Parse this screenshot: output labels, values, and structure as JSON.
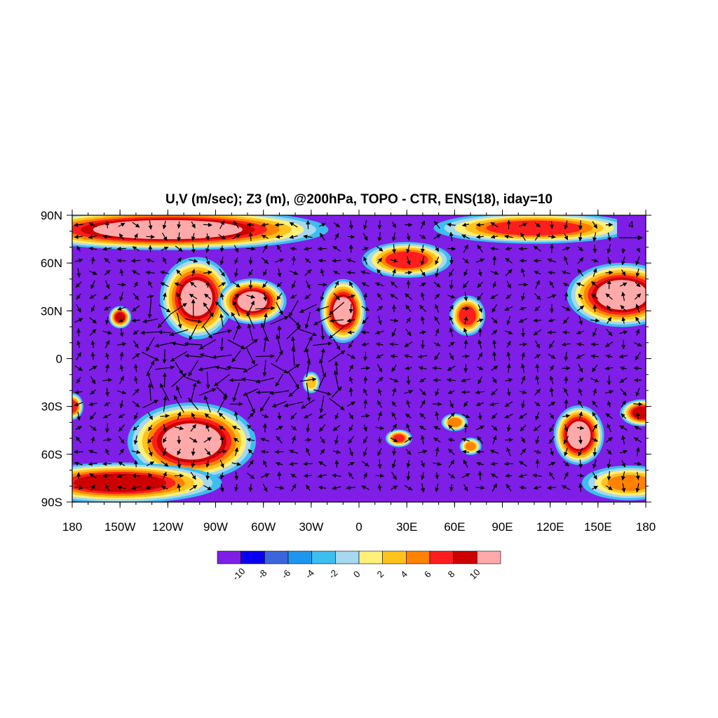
{
  "title": "U,V (m/sec); Z3 (m), @200hPa, TOPO - CTR, ENS(18), iday=10",
  "map": {
    "lon_range": [
      -180,
      180
    ],
    "lat_range": [
      -90,
      90
    ],
    "lon_ticks": [
      {
        "value": -180,
        "label": "180"
      },
      {
        "value": -150,
        "label": "150W"
      },
      {
        "value": -120,
        "label": "120W"
      },
      {
        "value": -90,
        "label": "90W"
      },
      {
        "value": -60,
        "label": "60W"
      },
      {
        "value": -30,
        "label": "30W"
      },
      {
        "value": 0,
        "label": "0"
      },
      {
        "value": 30,
        "label": "30E"
      },
      {
        "value": 60,
        "label": "60E"
      },
      {
        "value": 90,
        "label": "90E"
      },
      {
        "value": 120,
        "label": "120E"
      },
      {
        "value": 150,
        "label": "150E"
      },
      {
        "value": 180,
        "label": "180"
      }
    ],
    "lat_ticks": [
      {
        "value": 90,
        "label": "90N"
      },
      {
        "value": 60,
        "label": "60N"
      },
      {
        "value": 30,
        "label": "30N"
      },
      {
        "value": 0,
        "label": "0"
      },
      {
        "value": -30,
        "label": "30S"
      },
      {
        "value": -60,
        "label": "60S"
      },
      {
        "value": -90,
        "label": "90S"
      }
    ],
    "background_color": "#7f1ee6",
    "positive_anomalies": [
      {
        "lon": -120,
        "lat": 81,
        "rlon": 70,
        "rlat": 9,
        "peak": 12
      },
      {
        "lon": -102,
        "lat": 38,
        "rlon": 16,
        "rlat": 18,
        "peak": 11
      },
      {
        "lon": -67,
        "lat": 36,
        "rlon": 15,
        "rlat": 10,
        "peak": 11
      },
      {
        "lon": -150,
        "lat": 26,
        "rlon": 5,
        "rlat": 5,
        "peak": 8
      },
      {
        "lon": -10,
        "lat": 30,
        "rlon": 10,
        "rlat": 14,
        "peak": 11
      },
      {
        "lon": 30,
        "lat": 62,
        "rlon": 20,
        "rlat": 8,
        "peak": 7
      },
      {
        "lon": 165,
        "lat": 40,
        "rlon": 24,
        "rlat": 14,
        "peak": 12
      },
      {
        "lon": 110,
        "lat": 82,
        "rlon": 45,
        "rlat": 7,
        "peak": 7
      },
      {
        "lon": 68,
        "lat": 27,
        "rlon": 8,
        "rlat": 9,
        "peak": 7
      },
      {
        "lon": -105,
        "lat": -52,
        "rlon": 28,
        "rlat": 17,
        "peak": 12
      },
      {
        "lon": -150,
        "lat": -78,
        "rlon": 45,
        "rlat": 9,
        "peak": 9
      },
      {
        "lon": 138,
        "lat": -48,
        "rlon": 11,
        "rlat": 13,
        "peak": 12
      },
      {
        "lon": 178,
        "lat": -34,
        "rlon": 10,
        "rlat": 6,
        "peak": 9
      },
      {
        "lon": -180,
        "lat": -30,
        "rlon": 5,
        "rlat": 6,
        "peak": 7
      },
      {
        "lon": 25,
        "lat": -50,
        "rlon": 6,
        "rlat": 4,
        "peak": 6
      },
      {
        "lon": 60,
        "lat": -40,
        "rlon": 6,
        "rlat": 4,
        "peak": 5
      },
      {
        "lon": 70,
        "lat": -55,
        "rlon": 5,
        "rlat": 4,
        "peak": 4
      },
      {
        "lon": -30,
        "lat": -15,
        "rlon": 4,
        "rlat": 5,
        "peak": 3
      },
      {
        "lon": 170,
        "lat": -78,
        "rlon": 22,
        "rlat": 8,
        "peak": 4
      }
    ]
  },
  "colorbar": {
    "colors": [
      "#7f1ee6",
      "#0a00f0",
      "#3c64dc",
      "#1e96f0",
      "#3cbef0",
      "#a6d8f0",
      "#fff07a",
      "#ffc31e",
      "#ff8200",
      "#ff1e1e",
      "#cd0000",
      "#ffaaaa"
    ],
    "labels": [
      "-10",
      "-8",
      "-6",
      "-4",
      "-2",
      "0",
      "2",
      "4",
      "6",
      "8",
      "10"
    ]
  },
  "reference_vector": {
    "label": "4",
    "color": "#7f1ee6"
  }
}
